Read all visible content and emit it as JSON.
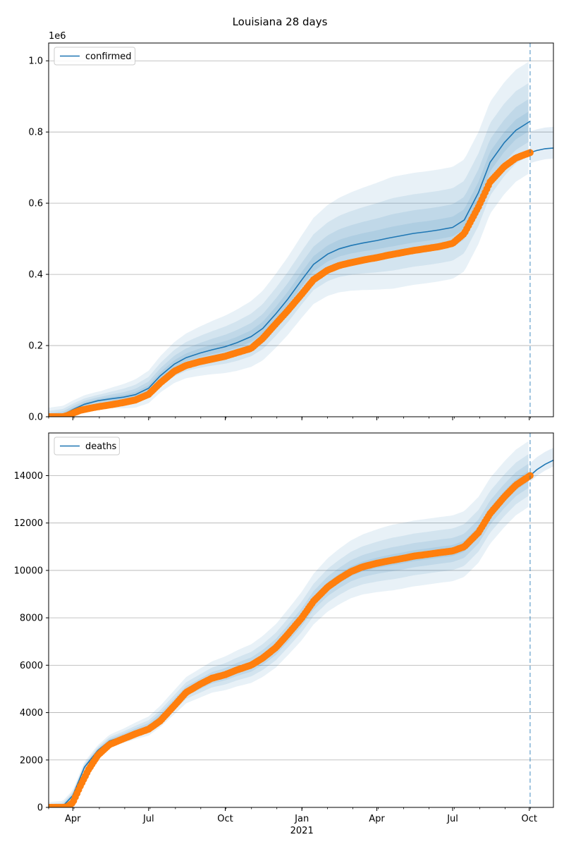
{
  "title": "Louisiana 28 days",
  "colors": {
    "model": "#1f77b4",
    "observed": "#ff7f0e",
    "band": "#1f77b4",
    "grid": "#b0b0b0"
  },
  "x_axis": {
    "ticks": [
      {
        "date": "2020-04-01",
        "label": "Apr"
      },
      {
        "date": "2020-07-01",
        "label": "Jul"
      },
      {
        "date": "2020-10-01",
        "label": "Oct"
      },
      {
        "date": "2021-01-01",
        "label": "Jan"
      },
      {
        "date": "2021-04-01",
        "label": "Apr"
      },
      {
        "date": "2021-07-01",
        "label": "Jul"
      },
      {
        "date": "2021-10-01",
        "label": "Oct"
      }
    ],
    "year_label": "2021",
    "xlim": [
      "2020-03-03",
      "2021-10-30"
    ],
    "forecast_start": "2021-10-02"
  },
  "chart_data": [
    {
      "type": "line",
      "name": "confirmed",
      "legend": "confirmed",
      "legend_position": "top-left",
      "offset_label": "1e6",
      "ylim": [
        0,
        1.05
      ],
      "yticks": [
        0,
        0.2,
        0.4,
        0.6,
        0.8,
        1.0
      ],
      "ytick_labels": [
        "0.0",
        "0.2",
        "0.4",
        "0.6",
        "0.8",
        "1.0"
      ],
      "grid_y": true,
      "model": [
        [
          "2020-03-03",
          0.0
        ],
        [
          "2020-03-20",
          0.005
        ],
        [
          "2020-04-01",
          0.02
        ],
        [
          "2020-04-15",
          0.035
        ],
        [
          "2020-05-01",
          0.045
        ],
        [
          "2020-05-15",
          0.05
        ],
        [
          "2020-06-01",
          0.055
        ],
        [
          "2020-06-15",
          0.062
        ],
        [
          "2020-07-01",
          0.08
        ],
        [
          "2020-07-15",
          0.115
        ],
        [
          "2020-08-01",
          0.148
        ],
        [
          "2020-08-15",
          0.166
        ],
        [
          "2020-09-01",
          0.179
        ],
        [
          "2020-09-15",
          0.188
        ],
        [
          "2020-10-01",
          0.197
        ],
        [
          "2020-10-15",
          0.208
        ],
        [
          "2020-11-01",
          0.225
        ],
        [
          "2020-11-15",
          0.248
        ],
        [
          "2020-12-01",
          0.29
        ],
        [
          "2020-12-15",
          0.33
        ],
        [
          "2021-01-01",
          0.385
        ],
        [
          "2021-01-15",
          0.428
        ],
        [
          "2021-02-01",
          0.457
        ],
        [
          "2021-02-15",
          0.472
        ],
        [
          "2021-03-01",
          0.481
        ],
        [
          "2021-03-15",
          0.488
        ],
        [
          "2021-04-01",
          0.495
        ],
        [
          "2021-04-15",
          0.502
        ],
        [
          "2021-05-01",
          0.509
        ],
        [
          "2021-05-15",
          0.515
        ],
        [
          "2021-06-01",
          0.52
        ],
        [
          "2021-06-15",
          0.525
        ],
        [
          "2021-07-01",
          0.532
        ],
        [
          "2021-07-15",
          0.553
        ],
        [
          "2021-08-01",
          0.63
        ],
        [
          "2021-08-15",
          0.715
        ],
        [
          "2021-09-01",
          0.77
        ],
        [
          "2021-09-15",
          0.805
        ],
        [
          "2021-10-02",
          0.83
        ]
      ],
      "forecast": [
        [
          "2021-10-02",
          0.742
        ],
        [
          "2021-10-10",
          0.748
        ],
        [
          "2021-10-20",
          0.753
        ],
        [
          "2021-10-30",
          0.755
        ]
      ],
      "observed": [
        [
          "2020-03-03",
          0.0
        ],
        [
          "2020-03-20",
          0.0
        ],
        [
          "2020-03-25",
          0.003
        ],
        [
          "2020-04-01",
          0.01
        ],
        [
          "2020-04-10",
          0.018
        ],
        [
          "2020-04-20",
          0.023
        ],
        [
          "2020-05-01",
          0.028
        ],
        [
          "2020-05-15",
          0.033
        ],
        [
          "2020-06-01",
          0.04
        ],
        [
          "2020-06-15",
          0.047
        ],
        [
          "2020-07-01",
          0.063
        ],
        [
          "2020-07-15",
          0.095
        ],
        [
          "2020-08-01",
          0.128
        ],
        [
          "2020-08-15",
          0.144
        ],
        [
          "2020-09-01",
          0.155
        ],
        [
          "2020-09-15",
          0.162
        ],
        [
          "2020-10-01",
          0.17
        ],
        [
          "2020-10-15",
          0.18
        ],
        [
          "2020-11-01",
          0.192
        ],
        [
          "2020-11-15",
          0.22
        ],
        [
          "2020-12-01",
          0.262
        ],
        [
          "2020-12-15",
          0.298
        ],
        [
          "2021-01-01",
          0.345
        ],
        [
          "2021-01-15",
          0.385
        ],
        [
          "2021-02-01",
          0.412
        ],
        [
          "2021-02-15",
          0.425
        ],
        [
          "2021-03-01",
          0.433
        ],
        [
          "2021-03-15",
          0.44
        ],
        [
          "2021-04-01",
          0.447
        ],
        [
          "2021-04-15",
          0.454
        ],
        [
          "2021-05-01",
          0.461
        ],
        [
          "2021-05-15",
          0.467
        ],
        [
          "2021-06-01",
          0.473
        ],
        [
          "2021-06-15",
          0.478
        ],
        [
          "2021-07-01",
          0.487
        ],
        [
          "2021-07-15",
          0.515
        ],
        [
          "2021-08-01",
          0.59
        ],
        [
          "2021-08-15",
          0.66
        ],
        [
          "2021-09-01",
          0.703
        ],
        [
          "2021-09-15",
          0.727
        ],
        [
          "2021-10-02",
          0.742
        ]
      ],
      "band_widths": [
        0.03,
        0.065,
        0.11,
        0.17
      ]
    },
    {
      "type": "line",
      "name": "deaths",
      "legend": "deaths",
      "legend_position": "top-left",
      "offset_label": "",
      "ylim": [
        0,
        15800
      ],
      "yticks": [
        0,
        2000,
        4000,
        6000,
        8000,
        10000,
        12000,
        14000
      ],
      "ytick_labels": [
        "0",
        "2000",
        "4000",
        "6000",
        "8000",
        "10000",
        "12000",
        "14000"
      ],
      "grid_y": true,
      "model": [
        [
          "2020-03-03",
          0
        ],
        [
          "2020-03-20",
          50
        ],
        [
          "2020-04-01",
          500
        ],
        [
          "2020-04-15",
          1700
        ],
        [
          "2020-05-01",
          2400
        ],
        [
          "2020-05-15",
          2800
        ],
        [
          "2020-06-01",
          3000
        ],
        [
          "2020-06-15",
          3200
        ],
        [
          "2020-07-01",
          3400
        ],
        [
          "2020-07-15",
          3800
        ],
        [
          "2020-08-01",
          4400
        ],
        [
          "2020-08-15",
          4900
        ],
        [
          "2020-09-01",
          5200
        ],
        [
          "2020-09-15",
          5450
        ],
        [
          "2020-10-01",
          5600
        ],
        [
          "2020-10-15",
          5800
        ],
        [
          "2020-11-01",
          6000
        ],
        [
          "2020-11-15",
          6300
        ],
        [
          "2020-12-01",
          6750
        ],
        [
          "2020-12-15",
          7300
        ],
        [
          "2021-01-01",
          8000
        ],
        [
          "2021-01-15",
          8700
        ],
        [
          "2021-02-01",
          9300
        ],
        [
          "2021-02-15",
          9650
        ],
        [
          "2021-03-01",
          9950
        ],
        [
          "2021-03-15",
          10150
        ],
        [
          "2021-04-01",
          10300
        ],
        [
          "2021-04-15",
          10400
        ],
        [
          "2021-05-01",
          10500
        ],
        [
          "2021-05-15",
          10600
        ],
        [
          "2021-06-01",
          10680
        ],
        [
          "2021-06-15",
          10750
        ],
        [
          "2021-07-01",
          10820
        ],
        [
          "2021-07-15",
          11000
        ],
        [
          "2021-08-01",
          11600
        ],
        [
          "2021-08-15",
          12400
        ],
        [
          "2021-09-01",
          13100
        ],
        [
          "2021-09-15",
          13600
        ],
        [
          "2021-10-02",
          14000
        ]
      ],
      "forecast": [
        [
          "2021-10-02",
          14000
        ],
        [
          "2021-10-10",
          14250
        ],
        [
          "2021-10-20",
          14480
        ],
        [
          "2021-10-30",
          14650
        ]
      ],
      "observed": [
        [
          "2020-03-03",
          0
        ],
        [
          "2020-03-20",
          0
        ],
        [
          "2020-03-25",
          20
        ],
        [
          "2020-04-01",
          200
        ],
        [
          "2020-04-10",
          900
        ],
        [
          "2020-04-20",
          1600
        ],
        [
          "2020-05-01",
          2200
        ],
        [
          "2020-05-15",
          2650
        ],
        [
          "2020-06-01",
          2900
        ],
        [
          "2020-06-15",
          3100
        ],
        [
          "2020-07-01",
          3300
        ],
        [
          "2020-07-15",
          3650
        ],
        [
          "2020-08-01",
          4300
        ],
        [
          "2020-08-15",
          4850
        ],
        [
          "2020-09-01",
          5200
        ],
        [
          "2020-09-15",
          5450
        ],
        [
          "2020-10-01",
          5600
        ],
        [
          "2020-10-15",
          5800
        ],
        [
          "2020-11-01",
          6000
        ],
        [
          "2020-11-15",
          6300
        ],
        [
          "2020-12-01",
          6750
        ],
        [
          "2020-12-15",
          7300
        ],
        [
          "2021-01-01",
          8000
        ],
        [
          "2021-01-15",
          8700
        ],
        [
          "2021-02-01",
          9300
        ],
        [
          "2021-02-15",
          9650
        ],
        [
          "2021-03-01",
          9950
        ],
        [
          "2021-03-15",
          10150
        ],
        [
          "2021-04-01",
          10300
        ],
        [
          "2021-04-15",
          10400
        ],
        [
          "2021-05-01",
          10500
        ],
        [
          "2021-05-15",
          10600
        ],
        [
          "2021-06-01",
          10680
        ],
        [
          "2021-06-15",
          10750
        ],
        [
          "2021-07-01",
          10820
        ],
        [
          "2021-07-15",
          11000
        ],
        [
          "2021-08-01",
          11600
        ],
        [
          "2021-08-15",
          12400
        ],
        [
          "2021-09-01",
          13100
        ],
        [
          "2021-09-15",
          13600
        ],
        [
          "2021-10-02",
          14000
        ]
      ],
      "band_widths": [
        250,
        550,
        950,
        1500
      ]
    }
  ]
}
